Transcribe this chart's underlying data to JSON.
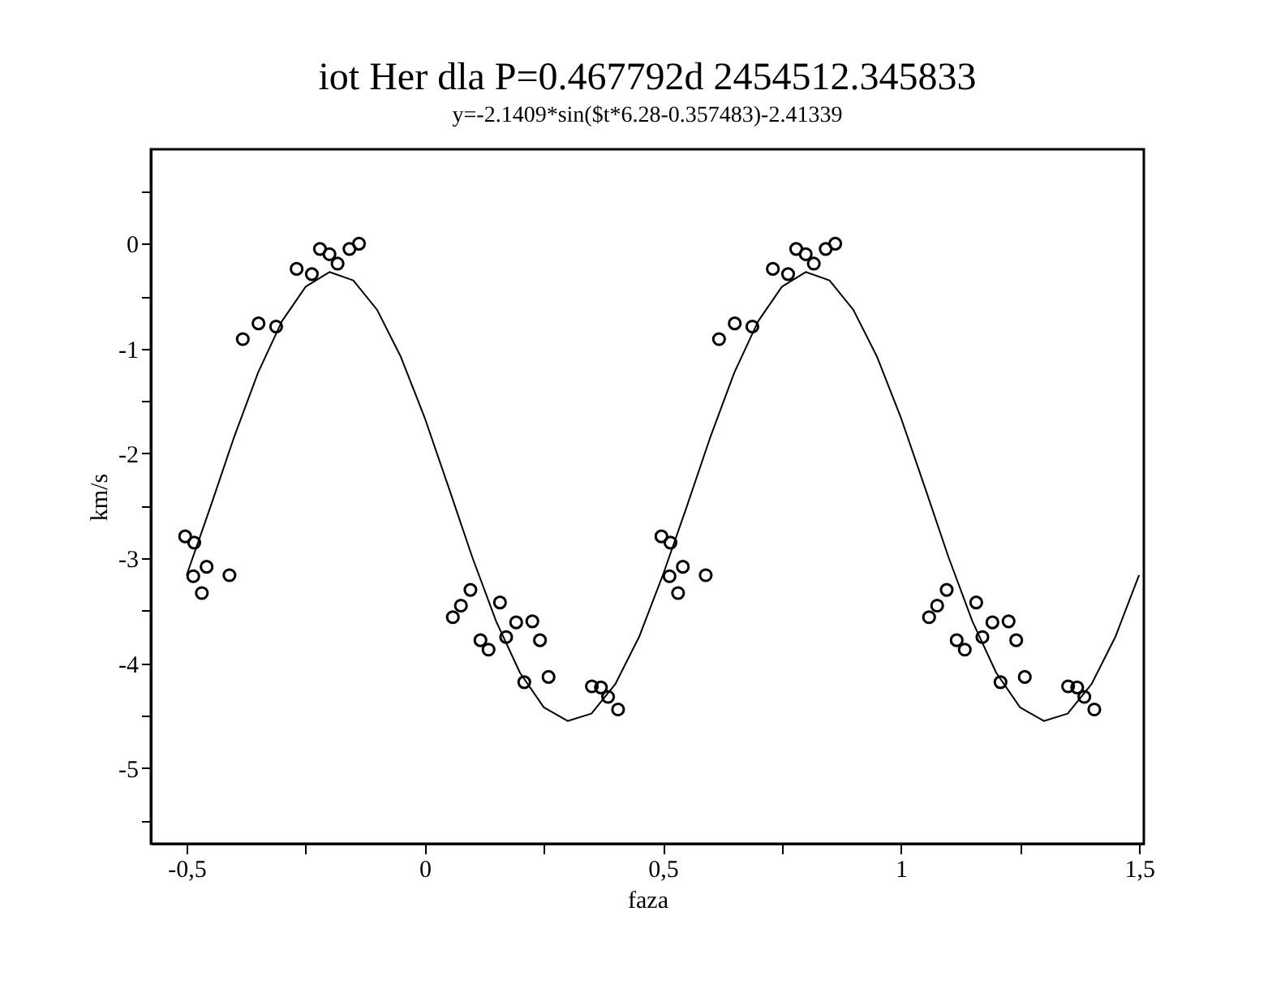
{
  "chart_data": {
    "type": "scatter",
    "title": "iot Her   dla P=0.467792d  2454512.345833",
    "subtitle": "y=-2.1409*sin($t*6.28-0.357483)-2.41339",
    "xlabel": "faza",
    "ylabel": "km/s",
    "xlim": [
      -0.575,
      1.51
    ],
    "ylim": [
      -5.72,
      0.9
    ],
    "xticks": [
      {
        "value": -0.5,
        "label": "-0,5"
      },
      {
        "value": -0.25,
        "label": null
      },
      0,
      {
        "value": 0.25,
        "label": null
      },
      {
        "value": 0.5,
        "label": "0,5"
      },
      {
        "value": 0.75,
        "label": null
      },
      1,
      {
        "value": 1.25,
        "label": null
      },
      {
        "value": 1.5,
        "label": "1,5"
      }
    ],
    "yticks": [
      {
        "value": -5.5,
        "label": null
      },
      -5,
      {
        "value": -4.5,
        "label": null
      },
      -4,
      {
        "value": -3.5,
        "label": null
      },
      -3,
      {
        "value": -2.5,
        "label": null
      },
      -2,
      {
        "value": -1.5,
        "label": null
      },
      -1,
      {
        "value": -0.5,
        "label": null
      },
      0,
      {
        "value": 0.5,
        "label": null
      }
    ],
    "grid": false,
    "legend": false,
    "series": [
      {
        "type": "scatter",
        "marker": "circle",
        "color": "#000000",
        "x": [
          -0.503,
          -0.484,
          -0.486,
          -0.458,
          -0.468,
          -0.41,
          -0.382,
          -0.349,
          -0.312,
          -0.269,
          -0.237,
          -0.22,
          -0.2,
          -0.183,
          -0.158,
          -0.138,
          0.059,
          0.076,
          0.096,
          0.117,
          0.134,
          0.158,
          0.171,
          0.192,
          0.226,
          0.242,
          0.209,
          0.26,
          0.351,
          0.37,
          0.385,
          0.406,
          0.497,
          0.516,
          0.514,
          0.542,
          0.532,
          0.59,
          0.618,
          0.651,
          0.688,
          0.731,
          0.763,
          0.78,
          0.8,
          0.817,
          0.842,
          0.862,
          1.059,
          1.076,
          1.096,
          1.117,
          1.134,
          1.158,
          1.171,
          1.192,
          1.226,
          1.242,
          1.209,
          1.26,
          1.351,
          1.37,
          1.385,
          1.406
        ],
        "values": [
          -2.79,
          -2.85,
          -3.17,
          -3.08,
          -3.33,
          -3.16,
          -0.91,
          -0.76,
          -0.79,
          -0.24,
          -0.29,
          -0.05,
          -0.1,
          -0.19,
          -0.05,
          0.0,
          -3.56,
          -3.45,
          -3.3,
          -3.78,
          -3.87,
          -3.42,
          -3.75,
          -3.61,
          -3.6,
          -3.78,
          -4.18,
          -4.13,
          -4.22,
          -4.23,
          -4.32,
          -4.44,
          -2.79,
          -2.85,
          -3.17,
          -3.08,
          -3.33,
          -3.16,
          -0.91,
          -0.76,
          -0.79,
          -0.24,
          -0.29,
          -0.05,
          -0.1,
          -0.19,
          -0.05,
          0.0,
          -3.56,
          -3.45,
          -3.3,
          -3.78,
          -3.87,
          -3.42,
          -3.75,
          -3.61,
          -3.6,
          -3.78,
          -4.18,
          -4.13,
          -4.22,
          -4.23,
          -4.32,
          -4.44
        ]
      },
      {
        "type": "line",
        "color": "#000000",
        "line_style": "solid",
        "x": [
          -0.5,
          -0.45,
          -0.4,
          -0.35,
          -0.3,
          -0.25,
          -0.2,
          -0.15,
          -0.1,
          -0.05,
          0,
          0.05,
          0.1,
          0.15,
          0.2,
          0.25,
          0.3,
          0.35,
          0.4,
          0.45,
          0.5,
          0.55,
          0.6,
          0.65,
          0.7,
          0.75,
          0.8,
          0.85,
          0.9,
          0.95,
          1,
          1.05,
          1.1,
          1.15,
          1.2,
          1.25,
          1.3,
          1.35,
          1.4,
          1.45,
          1.5
        ],
        "values": [
          -3.16,
          -2.51,
          -1.84,
          -1.23,
          -0.74,
          -0.41,
          -0.27,
          -0.35,
          -0.63,
          -1.08,
          -1.66,
          -2.32,
          -2.99,
          -3.6,
          -4.09,
          -4.42,
          -4.55,
          -4.48,
          -4.2,
          -3.75,
          -3.16,
          -2.51,
          -1.84,
          -1.23,
          -0.74,
          -0.41,
          -0.27,
          -0.35,
          -0.63,
          -1.08,
          -1.66,
          -2.32,
          -2.99,
          -3.6,
          -4.09,
          -4.42,
          -4.55,
          -4.48,
          -4.2,
          -3.75,
          -3.16
        ]
      }
    ]
  }
}
